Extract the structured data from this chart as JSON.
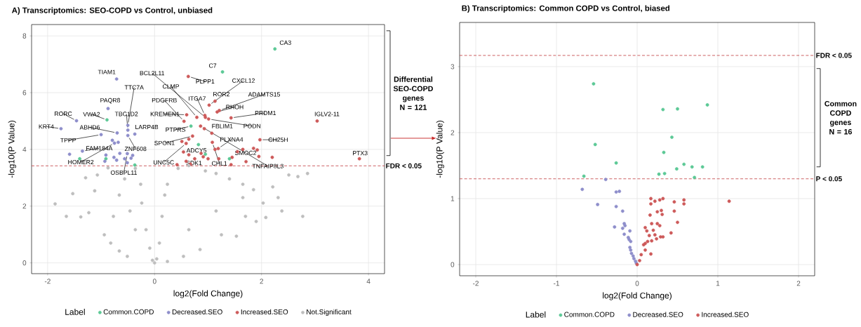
{
  "chart_data": [
    {
      "type": "scatter",
      "title": "A) Transcriptomics: SEO-COPD vs Control, unbiased",
      "xlabel": "log2(Fold Change)",
      "ylabel": "-log10(P Value)",
      "legend_title": "Label",
      "xlim": [
        -2.3,
        4.3
      ],
      "ylim": [
        -0.38,
        8.4
      ],
      "xticks": [
        -2,
        0,
        2,
        4
      ],
      "yticks": [
        0,
        2,
        4,
        6,
        8
      ],
      "grid": true,
      "legend": "bottom",
      "marker": "circle",
      "series": [
        {
          "name": "Common.COPD",
          "color": "#5cc996",
          "x": [
            2.25,
            1.27,
            -0.89,
            0.68,
            0.82,
            0.95,
            1.4,
            -1.4,
            -0.91,
            -0.37
          ],
          "values": [
            7.54,
            6.73,
            5.04,
            4.82,
            4.17,
            3.83,
            3.67,
            3.67,
            3.67,
            3.45
          ]
        },
        {
          "name": "Decreased.SEO",
          "color": "#8e8ecb",
          "x": [
            -0.71,
            -0.87,
            -1.46,
            -1.75,
            -1.0,
            -0.7,
            -0.5,
            -0.5,
            -0.37,
            -0.5,
            -0.79,
            -0.68,
            -0.75,
            -1.35,
            -1.59,
            -0.91,
            -0.65,
            -0.51,
            -0.41,
            -0.76,
            -0.93,
            -0.71,
            -0.56,
            -0.44,
            -0.51
          ],
          "values": [
            6.48,
            5.44,
            5.01,
            4.73,
            4.52,
            4.58,
            4.85,
            4.68,
            4.54,
            4.49,
            4.32,
            4.25,
            4.22,
            3.94,
            3.83,
            3.8,
            3.86,
            3.85,
            3.79,
            3.72,
            3.58,
            3.62,
            3.67,
            3.69,
            3.53
          ]
        },
        {
          "name": "Increased.SEO",
          "color": "#cd5a5a",
          "x": [
            0.63,
            1.02,
            1.13,
            1.17,
            1.21,
            1.43,
            3.04,
            3.83,
            0.6,
            0.55,
            0.79,
            0.94,
            0.95,
            1.01,
            0.86,
            0.93,
            1.07,
            0.71,
            0.64,
            0.51,
            0.59,
            1.08,
            1.13,
            1.19,
            1.97,
            1.65,
            1.85,
            1.92,
            1.95,
            2.2,
            1.55,
            1.45,
            1.43,
            0.54,
            0.64,
            0.87,
            0.91,
            0.75,
            1.0,
            0.59,
            1.2,
            0.42,
            0.67,
            1.71
          ],
          "values": [
            6.57,
            5.56,
            5.7,
            5.32,
            5.37,
            5.11,
            5.0,
            3.67,
            5.22,
            4.99,
            5.13,
            5.2,
            5.13,
            5.07,
            4.82,
            4.73,
            4.57,
            4.47,
            4.36,
            4.28,
            4.21,
            4.25,
            4.0,
            4.03,
            4.34,
            4.0,
            4.04,
            3.98,
            3.75,
            3.72,
            3.92,
            3.72,
            3.46,
            3.91,
            3.81,
            3.86,
            3.74,
            3.67,
            3.67,
            3.58,
            3.67,
            3.46,
            3.48,
            3.57
          ]
        },
        {
          "name": "Not.Significant",
          "color": "#bebebe",
          "x": [
            -1.86,
            -1.65,
            -1.53,
            -1.38,
            -1.29,
            -1.23,
            -1.07,
            -1.12,
            -0.87,
            -0.94,
            -0.82,
            -0.66,
            -0.51,
            -0.36,
            -0.26,
            -0.24,
            -0.16,
            -0.09,
            -0.04,
            0.0,
            -0.66,
            -0.56,
            -0.77,
            -0.46,
            -0.36,
            0.04,
            0.09,
            0.14,
            0.19,
            0.24,
            0.44,
            0.64,
            0.95,
            1.15,
            1.4,
            1.65,
            1.85,
            2.03,
            2.31,
            2.51,
            2.68,
            2.86,
            2.77,
            2.38,
            2.08,
            1.9,
            1.7,
            1.53,
            1.25,
            0.85,
            0.54,
            0.24,
            0.64,
            1.15,
            1.65,
            2.21
          ],
          "values": [
            2.08,
            1.64,
            2.44,
            1.62,
            3.0,
            1.77,
            3.1,
            2.54,
            3.35,
            0.99,
            0.7,
            0.42,
            0.23,
            3.33,
            2.77,
            2.11,
            1.17,
            0.52,
            0.09,
            0.0,
            2.39,
            2.96,
            1.64,
            1.83,
            1.17,
            0.14,
            0.7,
            1.64,
            2.39,
            2.77,
            3.33,
            3.43,
            3.24,
            3.15,
            2.96,
            2.77,
            2.58,
            2.11,
            2.3,
            3.1,
            3.04,
            3.15,
            1.64,
            1.83,
            1.6,
            1.46,
            1.64,
            0.94,
            0.99,
            0.47,
            0.23,
            0.05,
            1.17,
            1.83,
            2.3,
            2.68
          ]
        }
      ],
      "ref_lines": [
        {
          "axis": "y",
          "value": 3.42,
          "label": "FDR < 0.05",
          "color": "#c0393b",
          "line_style": "dashed"
        }
      ],
      "annotations": [
        {
          "text": "TIAM1",
          "x": -0.71,
          "y": 6.48
        },
        {
          "text": "BCL2L11",
          "x": 0.95,
          "y": 5.13
        },
        {
          "text": "C7",
          "x": 1.27,
          "y": 6.73
        },
        {
          "text": "CA3",
          "x": 2.25,
          "y": 7.54
        },
        {
          "text": "PLPP1",
          "x": 0.63,
          "y": 6.57
        },
        {
          "text": "CXCL12",
          "x": 1.02,
          "y": 5.56
        },
        {
          "text": "TTC7A",
          "x": -0.5,
          "y": 4.85
        },
        {
          "text": "CLMP",
          "x": 0.79,
          "y": 5.13
        },
        {
          "text": "ROR2",
          "x": 1.13,
          "y": 5.7
        },
        {
          "text": "ADAMTS15",
          "x": 1.21,
          "y": 5.37
        },
        {
          "text": "PAQR8",
          "x": -0.87,
          "y": 5.44
        },
        {
          "text": "PDGFRB",
          "x": 0.55,
          "y": 4.99
        },
        {
          "text": "ITGA7",
          "x": 0.94,
          "y": 5.2
        },
        {
          "text": "RHOH",
          "x": 1.17,
          "y": 5.32
        },
        {
          "text": "RORC",
          "x": -1.46,
          "y": 5.01
        },
        {
          "text": "VWA2",
          "x": -0.89,
          "y": 5.04
        },
        {
          "text": "TBC1D2",
          "x": -0.5,
          "y": 4.68
        },
        {
          "text": "KREMEN1",
          "x": 0.6,
          "y": 5.22
        },
        {
          "text": "PRDM1",
          "x": 1.43,
          "y": 5.11
        },
        {
          "text": "IGLV2-11",
          "x": 3.04,
          "y": 5.0
        },
        {
          "text": "KRT4",
          "x": -1.75,
          "y": 4.73
        },
        {
          "text": "ABHD6",
          "x": -0.7,
          "y": 4.58
        },
        {
          "text": "LARP4B",
          "x": -0.37,
          "y": 4.54
        },
        {
          "text": "PTPRS",
          "x": 0.68,
          "y": 4.82
        },
        {
          "text": "FBLIM1",
          "x": 1.07,
          "y": 4.57
        },
        {
          "text": "PODN",
          "x": 1.01,
          "y": 5.07
        },
        {
          "text": "TPPP",
          "x": -1.0,
          "y": 4.52
        },
        {
          "text": "PLXNA4",
          "x": 1.19,
          "y": 4.03
        },
        {
          "text": "CH25H",
          "x": 1.97,
          "y": 4.34
        },
        {
          "text": "SPON1",
          "x": 0.71,
          "y": 4.47
        },
        {
          "text": "FAM184A",
          "x": -1.35,
          "y": 3.94
        },
        {
          "text": "ZNF608",
          "x": -0.5,
          "y": 4.49
        },
        {
          "text": "ADCY5",
          "x": 0.64,
          "y": 4.36
        },
        {
          "text": "SMOC2",
          "x": 1.65,
          "y": 4.0
        },
        {
          "text": "PTX3",
          "x": 3.83,
          "y": 3.67
        },
        {
          "text": "HOMER2",
          "x": -0.75,
          "y": 4.22
        },
        {
          "text": "OSBPL11",
          "x": -0.51,
          "y": 3.85
        },
        {
          "text": "UNC5C",
          "x": 0.59,
          "y": 4.21
        },
        {
          "text": "SDK1",
          "x": 0.75,
          "y": 3.67
        },
        {
          "text": "CHL1",
          "x": 1.08,
          "y": 4.25
        },
        {
          "text": "TNFAIP8L3",
          "x": 0.86,
          "y": 4.82
        },
        "Differential SEO-COPD genes N = 121"
      ]
    },
    {
      "type": "scatter",
      "title": "B) Transcriptomics: Common COPD vs Control, biased",
      "xlabel": "log2(Fold Change)",
      "ylabel": "-log10(P Value)",
      "legend_title": "Label",
      "xlim": [
        -2.2,
        2.2
      ],
      "ylim": [
        -0.17,
        3.67
      ],
      "xticks": [
        -2,
        -1,
        0,
        1,
        2
      ],
      "yticks": [
        0,
        1,
        2,
        3
      ],
      "grid": true,
      "legend": "bottom",
      "marker": "circle",
      "series": [
        {
          "name": "Common.COPD",
          "color": "#5cc996",
          "x": [
            -0.54,
            -0.52,
            -0.26,
            -0.66,
            0.32,
            0.5,
            0.87,
            0.43,
            0.33,
            0.58,
            0.68,
            0.81,
            0.49,
            0.27,
            0.34,
            0.71
          ],
          "values": [
            2.74,
            1.82,
            1.54,
            1.34,
            2.35,
            2.36,
            2.42,
            1.93,
            1.7,
            1.52,
            1.48,
            1.48,
            1.45,
            1.37,
            1.38,
            1.32
          ]
        },
        {
          "name": "Decreased.SEO",
          "color": "#8e8ecb",
          "x": [
            -0.39,
            -0.68,
            -0.49,
            -0.26,
            -0.22,
            -0.26,
            -0.18,
            -0.28,
            -0.16,
            -0.15,
            -0.18,
            -0.09,
            -0.16,
            -0.11,
            -0.1,
            -0.08,
            -0.09,
            -0.08,
            -0.07,
            -0.05,
            -0.04,
            -0.02,
            -0.01
          ],
          "values": [
            1.29,
            1.14,
            0.91,
            1.1,
            1.11,
            0.88,
            0.81,
            0.57,
            0.62,
            0.59,
            0.55,
            0.51,
            0.46,
            0.41,
            0.38,
            0.35,
            0.26,
            0.22,
            0.17,
            0.13,
            0.09,
            0.05,
            0.02
          ]
        },
        {
          "name": "Increased.SEO",
          "color": "#cd5a5a",
          "x": [
            0.0,
            0.03,
            0.05,
            0.08,
            0.1,
            0.1,
            0.17,
            0.17,
            0.22,
            0.28,
            0.32,
            0.46,
            0.58,
            0.58,
            1.14,
            0.25,
            0.3,
            0.31,
            0.46,
            0.16,
            0.18,
            0.25,
            0.2,
            0.28,
            0.15,
            0.22,
            0.29,
            0.32,
            0.5,
            0.42,
            0.17,
            0.13,
            0.1,
            0.12,
            0.18,
            0.24
          ],
          "values": [
            0.0,
            0.06,
            0.15,
            0.3,
            0.22,
            0.56,
            0.92,
            1.0,
            0.96,
            0.98,
            1.0,
            0.95,
            0.98,
            0.92,
            0.96,
            0.8,
            0.82,
            0.76,
            0.81,
            0.75,
            0.62,
            0.62,
            0.52,
            0.59,
            0.44,
            0.45,
            0.42,
            0.42,
            0.64,
            0.48,
            0.16,
            0.35,
            0.32,
            0.51,
            0.36,
            0.39
          ]
        }
      ],
      "ref_lines": [
        {
          "axis": "y",
          "value": 3.17,
          "label": "FDR < 0.05",
          "color": "#c0393b",
          "line_style": "dashed"
        },
        {
          "axis": "y",
          "value": 1.3,
          "label": "P < 0.05",
          "color": "#c0393b",
          "line_style": "dashed"
        }
      ],
      "annotations": [
        "Common COPD genes N = 16"
      ]
    }
  ]
}
